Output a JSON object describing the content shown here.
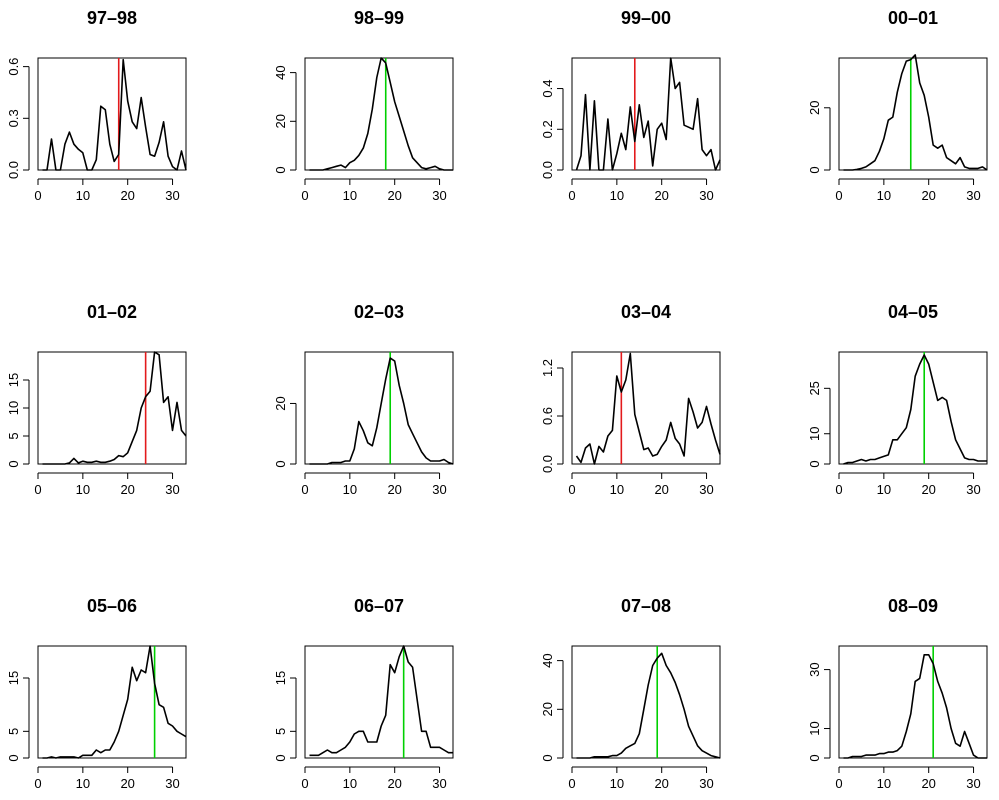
{
  "chart_data": [
    {
      "type": "line",
      "title": "97–98",
      "xlim": [
        0,
        33
      ],
      "ylim": [
        0,
        0.65
      ],
      "xticks": [
        0,
        10,
        20,
        30
      ],
      "yticks": [
        0.0,
        0.3,
        0.6
      ],
      "ytick_labels": [
        "0.0",
        "0.3",
        "0.6"
      ],
      "marker_x": 18,
      "marker_color": "#e31a1c",
      "x": [
        1,
        2,
        3,
        4,
        5,
        6,
        7,
        8,
        9,
        10,
        11,
        12,
        13,
        14,
        15,
        16,
        17,
        18,
        19,
        20,
        21,
        22,
        23,
        24,
        25,
        26,
        27,
        28,
        29,
        30,
        31,
        32,
        33
      ],
      "y": [
        0.0,
        0.0,
        0.18,
        0.0,
        0.0,
        0.15,
        0.22,
        0.15,
        0.12,
        0.1,
        0.0,
        0.0,
        0.06,
        0.37,
        0.35,
        0.15,
        0.05,
        0.09,
        0.64,
        0.4,
        0.28,
        0.24,
        0.42,
        0.25,
        0.09,
        0.08,
        0.16,
        0.28,
        0.08,
        0.02,
        0.0,
        0.11,
        0.0
      ]
    },
    {
      "type": "line",
      "title": "98–99",
      "xlim": [
        0,
        33
      ],
      "ylim": [
        0,
        46
      ],
      "xticks": [
        0,
        10,
        20,
        30
      ],
      "yticks": [
        0,
        20,
        40
      ],
      "ytick_labels": [
        "0",
        "20",
        "40"
      ],
      "marker_x": 18,
      "marker_color": "#00d000",
      "x": [
        1,
        2,
        3,
        4,
        5,
        6,
        7,
        8,
        9,
        10,
        11,
        12,
        13,
        14,
        15,
        16,
        17,
        18,
        19,
        20,
        21,
        22,
        23,
        24,
        25,
        26,
        27,
        28,
        29,
        30,
        31,
        32,
        33
      ],
      "y": [
        0,
        0,
        0,
        0,
        0.5,
        1,
        1.5,
        2,
        1,
        3,
        4,
        6,
        9,
        15,
        25,
        38,
        46,
        44,
        36,
        28,
        22,
        16,
        10,
        5,
        3,
        1,
        0.5,
        1,
        1.5,
        0.5,
        0,
        0,
        0
      ]
    },
    {
      "type": "line",
      "title": "99–00",
      "xlim": [
        0,
        33
      ],
      "ylim": [
        0,
        0.55
      ],
      "xticks": [
        0,
        10,
        20,
        30
      ],
      "yticks": [
        0.0,
        0.2,
        0.4
      ],
      "ytick_labels": [
        "0.0",
        "0.2",
        "0.4"
      ],
      "marker_x": 14,
      "marker_color": "#e31a1c",
      "x": [
        1,
        2,
        3,
        4,
        5,
        6,
        7,
        8,
        9,
        10,
        11,
        12,
        13,
        14,
        15,
        16,
        17,
        18,
        19,
        20,
        21,
        22,
        23,
        24,
        25,
        26,
        27,
        28,
        29,
        30,
        31,
        32,
        33
      ],
      "y": [
        0.0,
        0.07,
        0.37,
        0.0,
        0.34,
        0.0,
        0.0,
        0.25,
        0.0,
        0.08,
        0.18,
        0.1,
        0.31,
        0.14,
        0.32,
        0.16,
        0.24,
        0.02,
        0.2,
        0.23,
        0.15,
        0.55,
        0.4,
        0.43,
        0.22,
        0.21,
        0.2,
        0.35,
        0.1,
        0.07,
        0.1,
        0.0,
        0.05
      ]
    },
    {
      "type": "line",
      "title": "00–01",
      "xlim": [
        0,
        33
      ],
      "ylim": [
        0,
        36
      ],
      "xticks": [
        0,
        10,
        20,
        30
      ],
      "yticks": [
        0,
        20
      ],
      "ytick_labels": [
        "0",
        "20"
      ],
      "marker_x": 16,
      "marker_color": "#00d000",
      "x": [
        1,
        2,
        3,
        4,
        5,
        6,
        7,
        8,
        9,
        10,
        11,
        12,
        13,
        14,
        15,
        16,
        17,
        18,
        19,
        20,
        21,
        22,
        23,
        24,
        25,
        26,
        27,
        28,
        29,
        30,
        31,
        32,
        33
      ],
      "y": [
        0,
        0,
        0,
        0.2,
        0.5,
        1,
        2,
        3,
        6,
        10,
        16,
        17,
        25,
        31,
        35,
        35.5,
        37,
        28,
        24,
        17,
        8,
        7,
        8,
        4,
        3,
        2,
        4,
        1,
        0.5,
        0.5,
        0.5,
        1,
        0
      ]
    },
    {
      "type": "line",
      "title": "01–02",
      "xlim": [
        0,
        33
      ],
      "ylim": [
        0,
        20
      ],
      "xticks": [
        0,
        10,
        20,
        30
      ],
      "yticks": [
        0,
        5,
        10,
        15
      ],
      "ytick_labels": [
        "0",
        "5",
        "10",
        "15"
      ],
      "marker_x": 24,
      "marker_color": "#e31a1c",
      "x": [
        1,
        2,
        3,
        4,
        5,
        6,
        7,
        8,
        9,
        10,
        11,
        12,
        13,
        14,
        15,
        16,
        17,
        18,
        19,
        20,
        21,
        22,
        23,
        24,
        25,
        26,
        27,
        28,
        29,
        30,
        31,
        32,
        33
      ],
      "y": [
        0,
        0,
        0,
        0,
        0,
        0,
        0.2,
        1,
        0.2,
        0.5,
        0.3,
        0.3,
        0.5,
        0.3,
        0.3,
        0.5,
        0.8,
        1.5,
        1.3,
        2,
        4,
        6,
        10,
        12,
        13,
        20,
        19.5,
        11,
        12,
        6,
        11,
        6,
        5
      ]
    },
    {
      "type": "line",
      "title": "02–03",
      "xlim": [
        0,
        33
      ],
      "ylim": [
        0,
        37
      ],
      "xticks": [
        0,
        10,
        20,
        30
      ],
      "yticks": [
        0,
        20
      ],
      "ytick_labels": [
        "0",
        "20"
      ],
      "marker_x": 19,
      "marker_color": "#00d000",
      "x": [
        1,
        2,
        3,
        4,
        5,
        6,
        7,
        8,
        9,
        10,
        11,
        12,
        13,
        14,
        15,
        16,
        17,
        18,
        19,
        20,
        21,
        22,
        23,
        24,
        25,
        26,
        27,
        28,
        29,
        30,
        31,
        32,
        33
      ],
      "y": [
        0,
        0,
        0,
        0,
        0,
        0.5,
        0.5,
        0.5,
        1,
        1,
        5,
        14,
        11,
        7,
        6,
        12,
        20,
        28,
        35,
        34,
        26,
        20,
        13,
        10,
        7,
        4,
        2,
        1,
        1,
        1,
        1.5,
        0.5,
        0
      ]
    },
    {
      "type": "line",
      "title": "03–04",
      "xlim": [
        0,
        33
      ],
      "ylim": [
        0,
        1.4
      ],
      "xticks": [
        0,
        10,
        20,
        30
      ],
      "yticks": [
        0.0,
        0.6,
        1.2
      ],
      "ytick_labels": [
        "0.0",
        "0.6",
        "1.2"
      ],
      "marker_x": 11,
      "marker_color": "#e31a1c",
      "x": [
        1,
        2,
        3,
        4,
        5,
        6,
        7,
        8,
        9,
        10,
        11,
        12,
        13,
        14,
        15,
        16,
        17,
        18,
        19,
        20,
        21,
        22,
        23,
        24,
        25,
        26,
        27,
        28,
        29,
        30,
        31,
        32,
        33
      ],
      "y": [
        0.1,
        0.02,
        0.2,
        0.25,
        0.0,
        0.22,
        0.15,
        0.35,
        0.42,
        1.1,
        0.9,
        1.05,
        1.38,
        0.62,
        0.4,
        0.18,
        0.2,
        0.1,
        0.12,
        0.22,
        0.3,
        0.52,
        0.32,
        0.25,
        0.1,
        0.82,
        0.65,
        0.45,
        0.52,
        0.72,
        0.5,
        0.3,
        0.12
      ]
    },
    {
      "type": "line",
      "title": "04–05",
      "xlim": [
        0,
        33
      ],
      "ylim": [
        0,
        37
      ],
      "xticks": [
        0,
        10,
        20,
        30
      ],
      "yticks": [
        0,
        10,
        25
      ],
      "ytick_labels": [
        "0",
        "10",
        "25"
      ],
      "marker_x": 19,
      "marker_color": "#00d000",
      "x": [
        1,
        2,
        3,
        4,
        5,
        6,
        7,
        8,
        9,
        10,
        11,
        12,
        13,
        14,
        15,
        16,
        17,
        18,
        19,
        20,
        21,
        22,
        23,
        24,
        25,
        26,
        27,
        28,
        29,
        30,
        31,
        32,
        33
      ],
      "y": [
        0,
        0.5,
        0.5,
        1,
        1.5,
        1,
        1.5,
        1.5,
        2,
        2.5,
        3,
        8,
        8,
        10,
        12,
        18,
        29,
        33,
        36,
        33,
        27,
        21,
        22,
        21,
        14,
        8,
        5,
        2,
        1.5,
        1.5,
        1,
        1,
        1
      ]
    },
    {
      "type": "line",
      "title": "05–06",
      "xlim": [
        0,
        33
      ],
      "ylim": [
        0,
        21
      ],
      "xticks": [
        0,
        10,
        20,
        30
      ],
      "yticks": [
        0,
        5,
        15
      ],
      "ytick_labels": [
        "0",
        "5",
        "15"
      ],
      "marker_x": 26,
      "marker_color": "#00d000",
      "x": [
        1,
        2,
        3,
        4,
        5,
        6,
        7,
        8,
        9,
        10,
        11,
        12,
        13,
        14,
        15,
        16,
        17,
        18,
        19,
        20,
        21,
        22,
        23,
        24,
        25,
        26,
        27,
        28,
        29,
        30,
        31,
        32,
        33
      ],
      "y": [
        0,
        0,
        0.2,
        0,
        0.2,
        0.2,
        0.2,
        0.2,
        0,
        0.5,
        0.5,
        0.5,
        1.5,
        1,
        1.5,
        1.5,
        3,
        5,
        8,
        11,
        17,
        14.5,
        16.5,
        16,
        21,
        14,
        10,
        9.5,
        6.5,
        6,
        5,
        4.5,
        4
      ]
    },
    {
      "type": "line",
      "title": "06–07",
      "xlim": [
        0,
        33
      ],
      "ylim": [
        0,
        21
      ],
      "xticks": [
        0,
        10,
        20,
        30
      ],
      "yticks": [
        0,
        5,
        15
      ],
      "ytick_labels": [
        "0",
        "5",
        "15"
      ],
      "marker_x": 22,
      "marker_color": "#00d000",
      "x": [
        1,
        2,
        3,
        4,
        5,
        6,
        7,
        8,
        9,
        10,
        11,
        12,
        13,
        14,
        15,
        16,
        17,
        18,
        19,
        20,
        21,
        22,
        23,
        24,
        25,
        26,
        27,
        28,
        29,
        30,
        31,
        32,
        33
      ],
      "y": [
        0.5,
        0.5,
        0.5,
        1,
        1.5,
        1,
        1,
        1.5,
        2,
        3,
        4.5,
        5,
        5,
        3,
        3,
        3,
        6,
        8,
        17.5,
        16,
        19,
        21,
        18,
        17,
        11,
        5,
        5,
        2,
        2,
        2,
        1.5,
        1,
        1
      ]
    },
    {
      "type": "line",
      "title": "07–08",
      "xlim": [
        0,
        33
      ],
      "ylim": [
        0,
        46
      ],
      "xticks": [
        0,
        10,
        20,
        30
      ],
      "yticks": [
        0,
        20,
        40
      ],
      "ytick_labels": [
        "0",
        "20",
        "40"
      ],
      "marker_x": 19,
      "marker_color": "#00d000",
      "x": [
        1,
        2,
        3,
        4,
        5,
        6,
        7,
        8,
        9,
        10,
        11,
        12,
        13,
        14,
        15,
        16,
        17,
        18,
        19,
        20,
        21,
        22,
        23,
        24,
        25,
        26,
        27,
        28,
        29,
        30,
        31,
        32,
        33
      ],
      "y": [
        0,
        0,
        0,
        0,
        0.5,
        0.5,
        0.5,
        0.5,
        1,
        1,
        2,
        4,
        5,
        6,
        10,
        20,
        30,
        38,
        41,
        43,
        38,
        35,
        31,
        26,
        20,
        13,
        9,
        5,
        3,
        2,
        1,
        0.5,
        0
      ]
    },
    {
      "type": "line",
      "title": "08–09",
      "xlim": [
        0,
        33
      ],
      "ylim": [
        0,
        38
      ],
      "xticks": [
        0,
        10,
        20,
        30
      ],
      "yticks": [
        0,
        10,
        30
      ],
      "ytick_labels": [
        "0",
        "10",
        "30"
      ],
      "marker_x": 21,
      "marker_color": "#00d000",
      "x": [
        1,
        2,
        3,
        4,
        5,
        6,
        7,
        8,
        9,
        10,
        11,
        12,
        13,
        14,
        15,
        16,
        17,
        18,
        19,
        20,
        21,
        22,
        23,
        24,
        25,
        26,
        27,
        28,
        29,
        30,
        31,
        32,
        33
      ],
      "y": [
        0,
        0,
        0.5,
        0.5,
        0.5,
        1,
        1,
        1,
        1.5,
        1.5,
        2,
        2,
        2.5,
        4,
        9,
        15,
        26,
        27,
        35,
        35,
        32,
        26,
        22,
        17,
        10,
        5,
        4,
        9,
        5,
        1,
        0,
        0,
        0
      ]
    }
  ]
}
